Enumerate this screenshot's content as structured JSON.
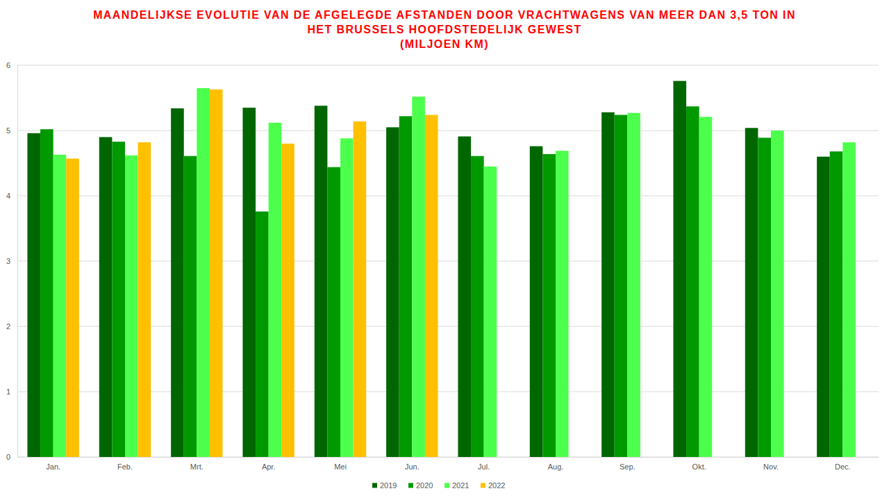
{
  "chart_data": {
    "type": "bar",
    "title": "MAANDELIJKSE EVOLUTIE VAN DE AFGELEGDE AFSTANDEN DOOR VRACHTWAGENS VAN MEER DAN 3,5 TON IN\nHET BRUSSELS HOOFDSTEDELIJK GEWEST\n(MILJOEN  KM)",
    "categories": [
      "Jan.",
      "Feb.",
      "Mrt.",
      "Apr.",
      "Mei",
      "Jun.",
      "Jul.",
      "Aug.",
      "Sep.",
      "Okt.",
      "Nov.",
      "Dec."
    ],
    "series": [
      {
        "name": "2019",
        "color": "#006600",
        "values": [
          4.96,
          4.9,
          5.34,
          5.35,
          5.38,
          5.05,
          4.91,
          4.76,
          5.28,
          5.76,
          5.04,
          4.6
        ]
      },
      {
        "name": "2020",
        "color": "#009900",
        "values": [
          5.02,
          4.83,
          4.61,
          3.76,
          4.44,
          5.22,
          4.61,
          4.64,
          5.24,
          5.37,
          4.89,
          4.68
        ]
      },
      {
        "name": "2021",
        "color": "#4cff4c",
        "values": [
          4.63,
          4.62,
          5.65,
          5.12,
          4.88,
          5.52,
          4.45,
          4.69,
          5.27,
          5.21,
          5.0,
          4.82
        ]
      },
      {
        "name": "2022",
        "color": "#ffc000",
        "values": [
          4.57,
          4.82,
          5.63,
          4.8,
          5.14,
          5.24,
          null,
          null,
          null,
          null,
          null,
          null
        ]
      }
    ],
    "ylim": [
      0,
      6
    ],
    "yticks": [
      0,
      1,
      2,
      3,
      4,
      5,
      6
    ],
    "grid": true,
    "legend": "bottom"
  }
}
